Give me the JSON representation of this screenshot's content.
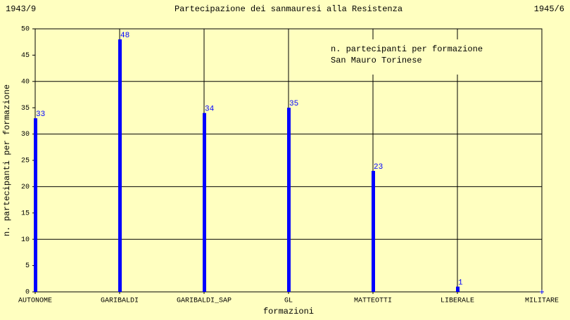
{
  "chart_data": {
    "type": "bar",
    "title": "Partecipazione dei sanmauresi alla Resistenza",
    "period_start": "1943/9",
    "period_end": "1945/6",
    "annotation": [
      "n. partecipanti per formazione",
      "San Mauro Torinese"
    ],
    "x_label": "formazioni",
    "y_label": "n. partecipanti per formazione",
    "categories": [
      "AUTONOME",
      "GARIBALDI",
      "GARIBALDI_SAP",
      "GL",
      "MATTEOTTI",
      "LIBERALE",
      "MILITARE"
    ],
    "values": [
      33,
      48,
      34,
      35,
      23,
      1,
      0
    ],
    "color": "#0000ff",
    "ylim": [
      0,
      50
    ],
    "yticks": [
      0,
      5,
      10,
      15,
      20,
      25,
      30,
      35,
      40,
      45,
      50
    ],
    "grid": true
  }
}
